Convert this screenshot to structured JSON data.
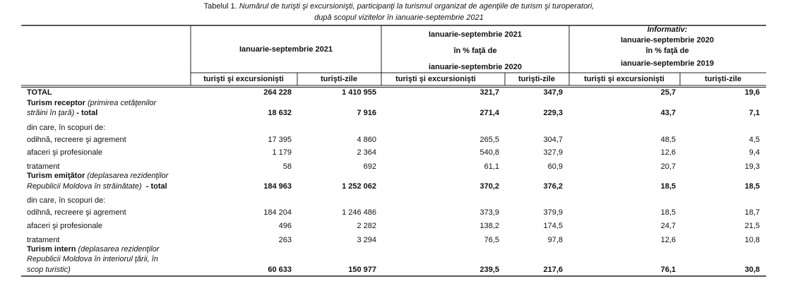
{
  "title": {
    "label": "Tabelul 1.",
    "text": "Numărul de turişti şi excursionişti, participanţi la turismul organizat de agenţiile de turism şi turoperatori,",
    "line2": "după scopul vizitelor în ianuarie-septembrie 2021"
  },
  "header": {
    "groups": [
      {
        "lines": [
          "Ianuarie-septembrie 2021"
        ]
      },
      {
        "lines": [
          "Ianuarie-septembrie 2021",
          "în % faţă de",
          "ianuarie-septembrie 2020"
        ]
      },
      {
        "note": "Informativ:",
        "lines": [
          "Ianuarie-septembrie 2020",
          "în % faţă de",
          "ianuarie-septembrie 2019"
        ]
      }
    ],
    "subheaders": [
      "turişti şi excursionişti",
      "turişti-zile",
      "turişti şi excursionişti",
      "turişti-zile",
      "turişti şi excursionişti",
      "turişti-zile"
    ]
  },
  "table": {
    "rows": [
      {
        "label": [
          [
            {
              "text": "TOTAL",
              "style": "bold"
            }
          ]
        ],
        "values": [
          "264 228",
          "1 410 955",
          "321,7",
          "347,9",
          "25,7",
          "19,6"
        ]
      },
      {
        "label": [
          [
            {
              "text": "Turism receptor",
              "style": "bold"
            },
            {
              "text": " (primirea cetăţenilor",
              "style": "italic"
            }
          ],
          [
            {
              "text": "străini în ţară)",
              "style": "italic"
            },
            {
              "text": " - total",
              "style": "bold"
            }
          ]
        ],
        "values": [
          "18 632",
          "7 916",
          "271,4",
          "229,3",
          "43,7",
          "7,1"
        ]
      },
      {
        "label": [
          [
            {
              "text": "din care, în scopuri de:",
              "style": "normal"
            }
          ]
        ]
      },
      {
        "label": [
          [
            {
              "text": "odihnă, recreere şi agrement",
              "style": "normal"
            }
          ]
        ],
        "values": [
          "17 395",
          "4 860",
          "265,5",
          "304,7",
          "48,5",
          "4,5"
        ]
      },
      {
        "label": [
          [
            {
              "text": "afaceri şi profesionale",
              "style": "normal"
            }
          ]
        ],
        "values": [
          "1 179",
          "2 364",
          "540,8",
          "327,9",
          "12,6",
          "9,4"
        ]
      },
      {
        "label": [
          [
            {
              "text": "tratament",
              "style": "normal"
            }
          ]
        ],
        "values": [
          "58",
          "692",
          "61,1",
          "60,9",
          "20,7",
          "19,3"
        ]
      },
      {
        "label": [
          [
            {
              "text": "Turism emiţător",
              "style": "bold"
            },
            {
              "text": " (deplasarea rezidenţilor",
              "style": "italic"
            }
          ],
          [
            {
              "text": "Republicii Moldova în străinătate)",
              "style": "italic"
            },
            {
              "text": "  - total",
              "style": "bold"
            }
          ]
        ],
        "values": [
          "184 963",
          "1 252 062",
          "370,2",
          "376,2",
          "18,5",
          "18,5"
        ]
      },
      {
        "label": [
          [
            {
              "text": "din care, în scopuri de:",
              "style": "normal"
            }
          ]
        ]
      },
      {
        "label": [
          [
            {
              "text": "odihnă, recreere şi agrement",
              "style": "normal"
            }
          ]
        ],
        "values": [
          "184 204",
          "1 246 486",
          "373,9",
          "379,9",
          "18,5",
          "18,7"
        ]
      },
      {
        "label": [
          [
            {
              "text": "afaceri şi profesionale",
              "style": "normal"
            }
          ]
        ],
        "values": [
          "496",
          "2 282",
          "138,2",
          "174,5",
          "24,7",
          "21,5"
        ]
      },
      {
        "label": [
          [
            {
              "text": "tratament",
              "style": "normal"
            }
          ]
        ],
        "values": [
          "263",
          "3 294",
          "76,5",
          "97,8",
          "12,6",
          "10,8"
        ]
      },
      {
        "label": [
          [
            {
              "text": "Turism intern",
              "style": "bold"
            },
            {
              "text": " (deplasarea rezidenţilor",
              "style": "italic"
            }
          ],
          [
            {
              "text": "Republicii Moldova în interiorul ţării, în",
              "style": "italic"
            }
          ],
          [
            {
              "text": "scop turistic)",
              "style": "italic"
            }
          ]
        ],
        "values": [
          "60 633",
          "150 977",
          "239,5",
          "217,6",
          "76,1",
          "30,8"
        ]
      }
    ]
  }
}
